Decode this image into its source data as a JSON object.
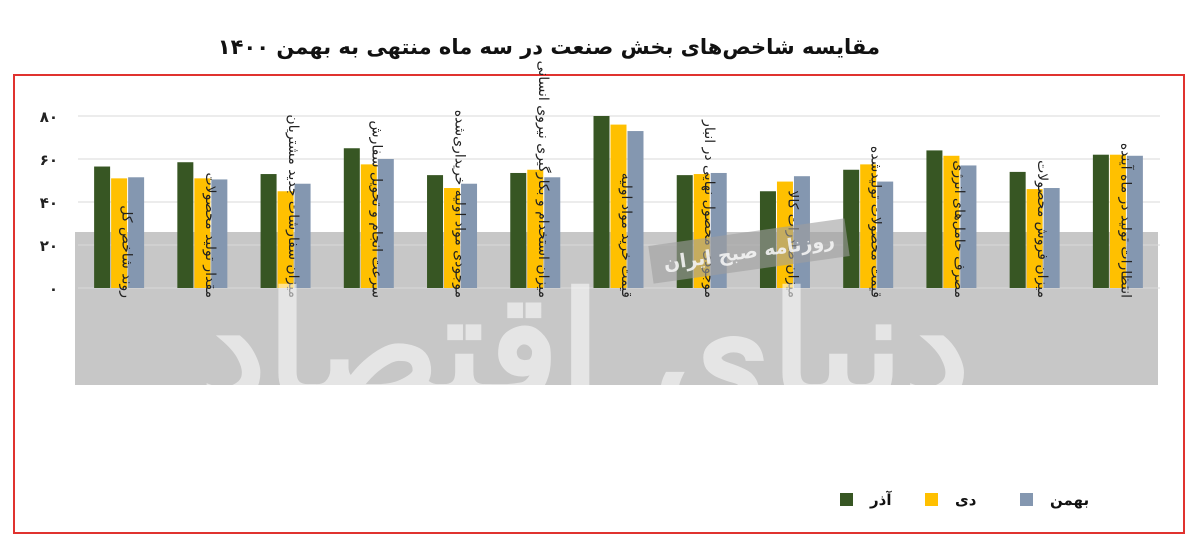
{
  "title": "مقایسه شاخص‌های بخش صنعت در سه ماه منتهی به بهمن ۱۴۰۰",
  "watermarks": [
    "روزنامه صبح ایران",
    "دنیای اقتصاد"
  ],
  "colors": {
    "frame": "#e0322f",
    "band": "#bdbdbd",
    "grid": "#d9d9d9"
  },
  "chart_data": {
    "type": "bar",
    "ylim": [
      0,
      80
    ],
    "yticks": [
      "۰",
      "۲۰",
      "۴۰",
      "۶۰",
      "۸۰"
    ],
    "ytick_values": [
      0,
      20,
      40,
      60,
      80
    ],
    "grid": true,
    "legend_position": "bottom-right",
    "categories": [
      "روند شاخص کل",
      "مقدار تولید محصولات",
      "میزان سفارشات جدید مشتریان",
      "سرعت انجام و تحویل سفارش",
      "موجودی مواد اولیه خریداری‌شده",
      "میزان استخدام و بکارگیری نیروی انسانی",
      "قیمت خرید مواد اولیه",
      "موجودی محصول نهایی در انبار",
      "میزان صادرات کالا",
      "قیمت محصولات تولیدشده",
      "مصرف حامل‌های انرژی",
      "میزان فروش محصولات",
      "انتظارات تولید در ماه آینده"
    ],
    "series": [
      {
        "name": "آذر",
        "color": "#375623",
        "values": [
          56.5,
          58.5,
          53,
          65,
          52.5,
          53.5,
          80,
          52.5,
          45,
          55,
          64,
          54,
          62
        ]
      },
      {
        "name": "دی",
        "color": "#ffc000",
        "values": [
          51,
          51,
          45,
          57.5,
          46.5,
          55,
          76,
          53,
          49.5,
          57.5,
          61.5,
          46,
          62
        ]
      },
      {
        "name": "بهمن",
        "color": "#8497b0",
        "values": [
          51.5,
          50.5,
          48.5,
          60,
          48.5,
          51.5,
          73,
          53.5,
          52,
          49.5,
          57,
          46.5,
          61.5
        ]
      }
    ]
  }
}
